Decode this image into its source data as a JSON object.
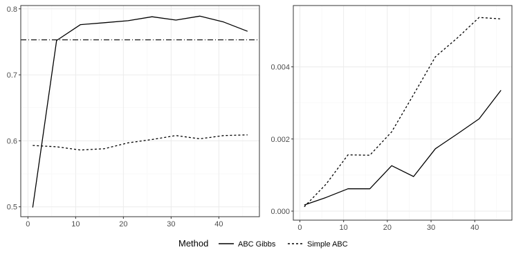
{
  "chart_data": [
    {
      "type": "line",
      "xlabel": "",
      "ylabel": "",
      "xlim": [
        -1.5,
        48.5
      ],
      "ylim": [
        0.485,
        0.805
      ],
      "x_ticks": [
        0,
        10,
        20,
        30,
        40
      ],
      "y_ticks": [
        0.5,
        0.6,
        0.7,
        0.8
      ],
      "y_tick_labels": [
        "0.5",
        "0.6",
        "0.7",
        "0.8"
      ],
      "grid": true,
      "x": [
        1,
        6,
        11,
        16,
        21,
        26,
        31,
        36,
        41,
        46
      ],
      "series": [
        {
          "name": "ABC Gibbs",
          "linetype": "solid",
          "values": [
            0.499,
            0.752,
            0.776,
            0.779,
            0.782,
            0.788,
            0.783,
            0.789,
            0.78,
            0.766
          ]
        },
        {
          "name": "Simple ABC",
          "linetype": "dashed",
          "values": [
            0.593,
            0.591,
            0.586,
            0.588,
            0.597,
            0.602,
            0.608,
            0.603,
            0.608,
            0.609
          ]
        }
      ],
      "reference_line": {
        "linetype": "dotdash",
        "y": 0.753
      }
    },
    {
      "type": "line",
      "xlabel": "",
      "ylabel": "",
      "xlim": [
        -1.5,
        48.5
      ],
      "ylim": [
        -0.00025,
        0.0057
      ],
      "x_ticks": [
        0,
        10,
        20,
        30,
        40
      ],
      "y_ticks": [
        0,
        0.002,
        0.004
      ],
      "y_tick_labels": [
        "0.000",
        "0.002",
        "0.004"
      ],
      "grid": true,
      "x": [
        1,
        6,
        11,
        16,
        21,
        26,
        31,
        36,
        41,
        46
      ],
      "series": [
        {
          "name": "ABC Gibbs",
          "linetype": "solid",
          "values": [
            0.00017,
            0.00038,
            0.00062,
            0.00062,
            0.00126,
            0.00096,
            0.00173,
            0.00214,
            0.00256,
            0.00335
          ]
        },
        {
          "name": "Simple ABC",
          "linetype": "dashed",
          "values": [
            0.00012,
            0.00075,
            0.00156,
            0.00155,
            0.0022,
            0.00323,
            0.00428,
            0.0048,
            0.00537,
            0.00533
          ]
        }
      ]
    }
  ],
  "legend": {
    "title": "Method",
    "position": "bottom",
    "items": [
      {
        "label": "ABC Gibbs",
        "linetype": "solid"
      },
      {
        "label": "Simple ABC",
        "linetype": "dashed"
      }
    ]
  },
  "colors": {
    "line": "#000000",
    "grid_major": "#ebebeb",
    "grid_minor": "#f5f5f5",
    "panel_border": "#333333",
    "tick_text": "#4d4d4d"
  }
}
